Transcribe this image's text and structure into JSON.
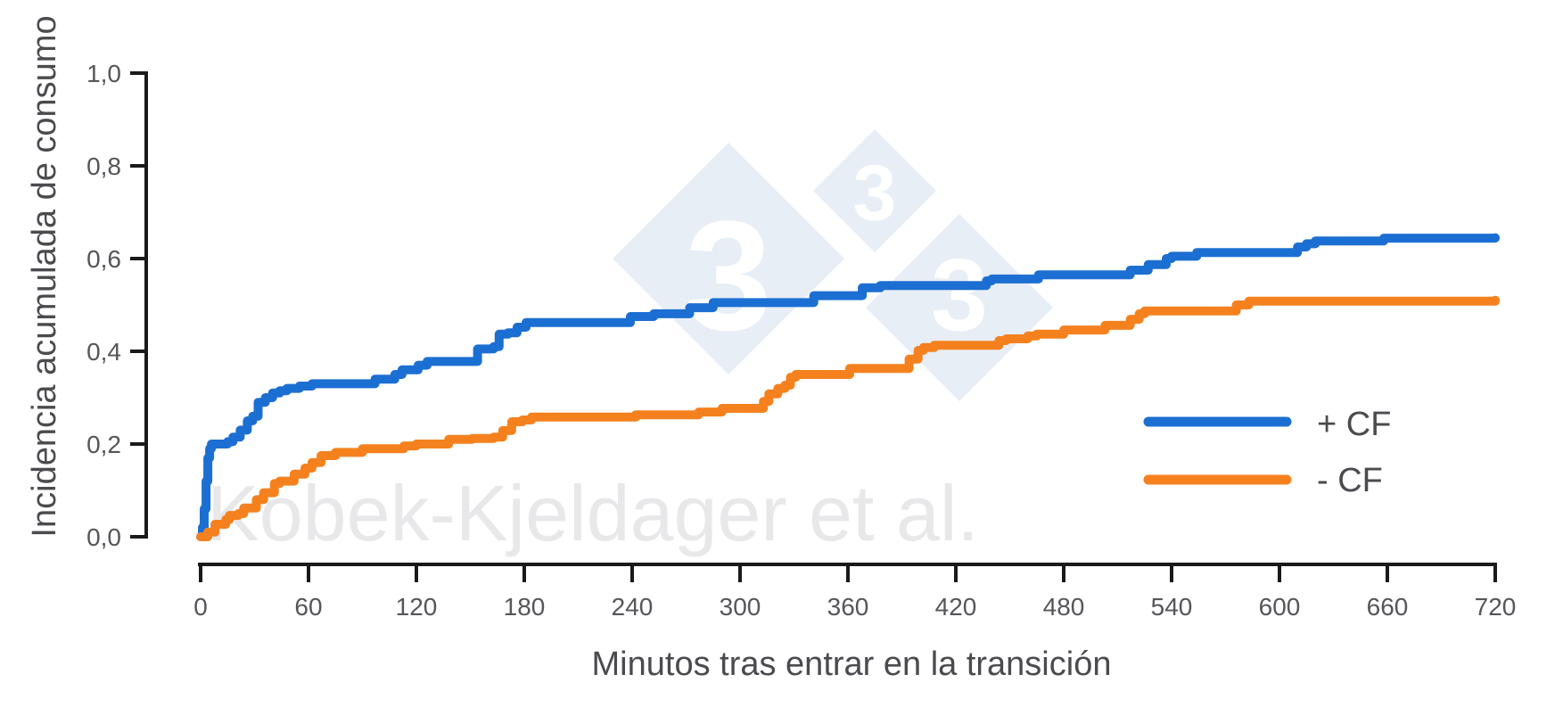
{
  "figure": {
    "background": "#ffffff"
  },
  "watermark": {
    "text": "Kobek-Kjeldager et al.",
    "digit": "3",
    "text_color": "#e8e8ea",
    "diamond_fill": "#e6ecf5",
    "digit_color": "#ffffff"
  },
  "chart_data": {
    "type": "line",
    "subtype": "step-post cumulative incidence (Kaplan-Meier style)",
    "title": "",
    "xlabel": "Minutos tras entrar en la transición",
    "ylabel": "Incidencia acumulada de consumo",
    "xlim": [
      0,
      720
    ],
    "ylim": [
      0,
      1.0
    ],
    "x_ticks": [
      0,
      60,
      120,
      180,
      240,
      300,
      360,
      420,
      480,
      540,
      600,
      660,
      720
    ],
    "x_tick_labels": [
      "0",
      "60",
      "120",
      "180",
      "240",
      "300",
      "360",
      "420",
      "480",
      "540",
      "600",
      "660",
      "720"
    ],
    "y_ticks": [
      0,
      0.2,
      0.4,
      0.6,
      0.8,
      1.0
    ],
    "y_tick_labels": [
      "0,0",
      "0,2",
      "0,4",
      "0,6",
      "0,8",
      "1,0"
    ],
    "grid": false,
    "legend_position": "right-middle",
    "axis_color": "#1a1a1a",
    "tick_label_color": "#55565a",
    "axis_title_color": "#4a4b4f",
    "series": [
      {
        "name": "+ CF",
        "color": "#1c6fd2",
        "points": [
          [
            0,
            0
          ],
          [
            1,
            0.02
          ],
          [
            2,
            0.06
          ],
          [
            3,
            0.12
          ],
          [
            4,
            0.17
          ],
          [
            5,
            0.19
          ],
          [
            6,
            0.2
          ],
          [
            15,
            0.205
          ],
          [
            18,
            0.215
          ],
          [
            22,
            0.23
          ],
          [
            26,
            0.25
          ],
          [
            29,
            0.26
          ],
          [
            32,
            0.29
          ],
          [
            36,
            0.3
          ],
          [
            40,
            0.31
          ],
          [
            44,
            0.315
          ],
          [
            48,
            0.32
          ],
          [
            55,
            0.325
          ],
          [
            62,
            0.33
          ],
          [
            97,
            0.34
          ],
          [
            108,
            0.35
          ],
          [
            112,
            0.36
          ],
          [
            121,
            0.37
          ],
          [
            126,
            0.378
          ],
          [
            154,
            0.405
          ],
          [
            163,
            0.41
          ],
          [
            166,
            0.437
          ],
          [
            171,
            0.44
          ],
          [
            176,
            0.452
          ],
          [
            181,
            0.462
          ],
          [
            239,
            0.475
          ],
          [
            252,
            0.481
          ],
          [
            272,
            0.494
          ],
          [
            285,
            0.505
          ],
          [
            341,
            0.52
          ],
          [
            368,
            0.537
          ],
          [
            378,
            0.542
          ],
          [
            437,
            0.552
          ],
          [
            440,
            0.556
          ],
          [
            466,
            0.565
          ],
          [
            517,
            0.575
          ],
          [
            527,
            0.587
          ],
          [
            537,
            0.6
          ],
          [
            540,
            0.605
          ],
          [
            554,
            0.613
          ],
          [
            610,
            0.625
          ],
          [
            615,
            0.632
          ],
          [
            620,
            0.638
          ],
          [
            658,
            0.644
          ],
          [
            720,
            0.645
          ]
        ]
      },
      {
        "name": "- CF",
        "color": "#f5811e",
        "points": [
          [
            0,
            0
          ],
          [
            4,
            0.01
          ],
          [
            8,
            0.027
          ],
          [
            14,
            0.037
          ],
          [
            16,
            0.046
          ],
          [
            21,
            0.05
          ],
          [
            24,
            0.062
          ],
          [
            31,
            0.08
          ],
          [
            35,
            0.095
          ],
          [
            41,
            0.115
          ],
          [
            44,
            0.12
          ],
          [
            52,
            0.135
          ],
          [
            58,
            0.148
          ],
          [
            62,
            0.16
          ],
          [
            67,
            0.175
          ],
          [
            75,
            0.182
          ],
          [
            90,
            0.19
          ],
          [
            113,
            0.196
          ],
          [
            120,
            0.2
          ],
          [
            138,
            0.21
          ],
          [
            151,
            0.212
          ],
          [
            163,
            0.215
          ],
          [
            168,
            0.229
          ],
          [
            173,
            0.248
          ],
          [
            179,
            0.252
          ],
          [
            184,
            0.258
          ],
          [
            242,
            0.263
          ],
          [
            277,
            0.269
          ],
          [
            290,
            0.277
          ],
          [
            313,
            0.292
          ],
          [
            316,
            0.308
          ],
          [
            321,
            0.32
          ],
          [
            325,
            0.327
          ],
          [
            328,
            0.344
          ],
          [
            331,
            0.35
          ],
          [
            361,
            0.363
          ],
          [
            394,
            0.383
          ],
          [
            399,
            0.402
          ],
          [
            402,
            0.408
          ],
          [
            408,
            0.413
          ],
          [
            444,
            0.423
          ],
          [
            448,
            0.427
          ],
          [
            460,
            0.433
          ],
          [
            465,
            0.437
          ],
          [
            480,
            0.446
          ],
          [
            503,
            0.456
          ],
          [
            517,
            0.469
          ],
          [
            522,
            0.481
          ],
          [
            525,
            0.487
          ],
          [
            576,
            0.5
          ],
          [
            583,
            0.508
          ],
          [
            720,
            0.51
          ]
        ]
      }
    ]
  }
}
